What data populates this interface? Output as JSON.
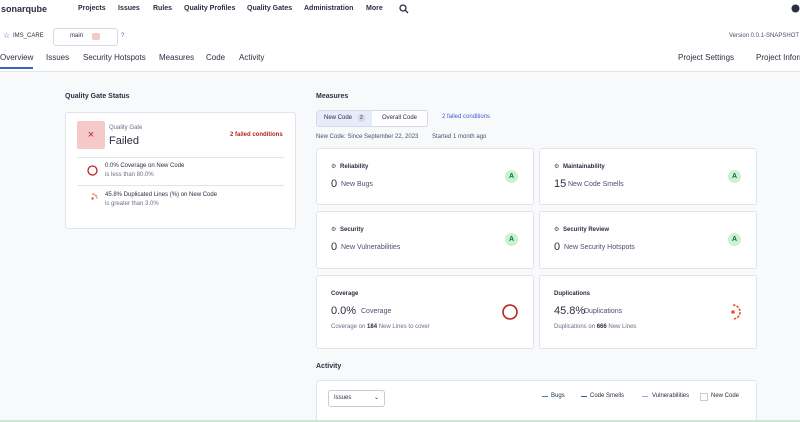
{
  "nav": {
    "logo": "sonarqube",
    "items": [
      "Projects",
      "Issues",
      "Rules",
      "Quality Profiles",
      "Quality Gates",
      "Administration",
      "More"
    ]
  },
  "project": {
    "name": "IMS_CARE",
    "branch": "main",
    "version": "Version 0.0.1-SNAPSHOT"
  },
  "tabs": [
    "Overview",
    "Issues",
    "Security Hotspots",
    "Measures",
    "Code",
    "Activity"
  ],
  "tabs_right": [
    "Project Settings",
    "Project Information"
  ],
  "quality_gate": {
    "title": "Quality Gate Status",
    "label": "Quality Gate",
    "status": "Failed",
    "failed": "2 failed conditions",
    "conditions": [
      {
        "title": "0.0% Coverage on New Code",
        "detail": "is less than 80.0%"
      },
      {
        "title": "45.8% Duplicated Lines (%) on New Code",
        "detail": "is greater than 3.0%"
      }
    ]
  },
  "measures": {
    "title": "Measures",
    "new_code": "New Code",
    "new_code_badge": "2",
    "overall_code": "Overall Code",
    "failed": "2 failed conditions",
    "since": "New Code: Since September 22, 2023",
    "started": "Started 1 month ago",
    "cards": [
      {
        "title": "Reliability",
        "value": "0",
        "label": "New Bugs",
        "grade": "A"
      },
      {
        "title": "Maintainability",
        "value": "15",
        "label": "New Code Smells",
        "grade": "A"
      },
      {
        "title": "Security",
        "value": "0",
        "label": "New Vulnerabilities",
        "grade": "A"
      },
      {
        "title": "Security Review",
        "value": "0",
        "label": "New Security Hotspots",
        "grade": "A"
      },
      {
        "title": "Coverage",
        "value": "0.0%",
        "label": "Coverage",
        "foot_pre": "Coverage on",
        "foot_num": "184",
        "foot_post": "New Lines to cover"
      },
      {
        "title": "Duplications",
        "value": "45.8%",
        "label": "Duplications",
        "foot_pre": "Duplications on",
        "foot_num": "666",
        "foot_post": "New Lines"
      }
    ]
  },
  "activity": {
    "title": "Activity",
    "select": "Issues",
    "legend": [
      "Bugs",
      "Code Smells",
      "Vulnerabilities"
    ],
    "new_code": "New Code"
  }
}
